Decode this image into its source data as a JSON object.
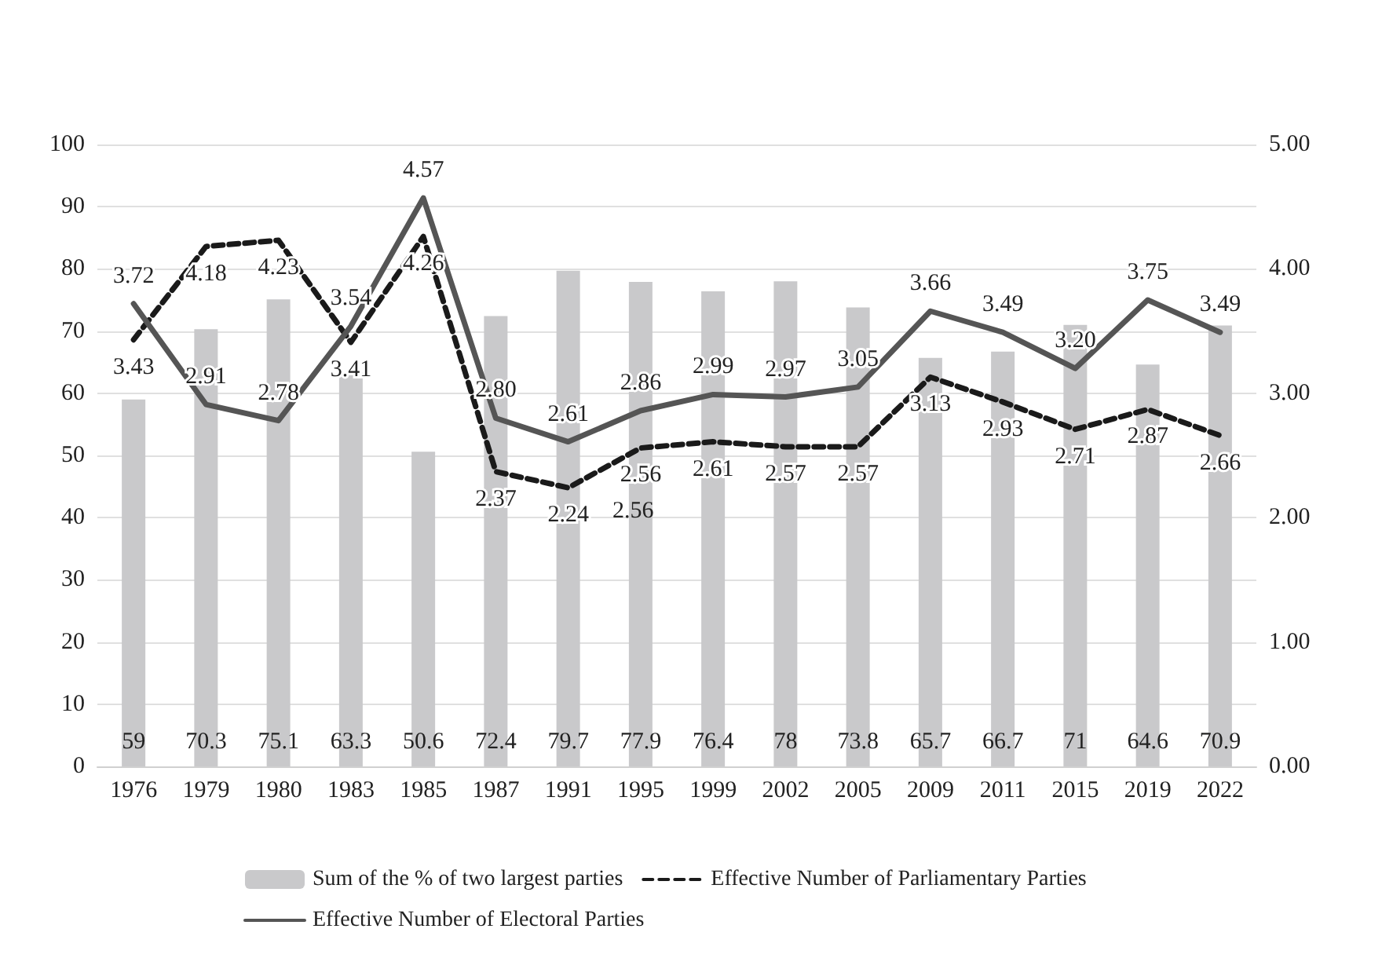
{
  "chart_data": {
    "type": "bar",
    "categories": [
      "1976",
      "1979",
      "1980",
      "1983",
      "1985",
      "1987",
      "1991",
      "1995",
      "1999",
      "2002",
      "2005",
      "2009",
      "2011",
      "2015",
      "2019",
      "2022"
    ],
    "series": [
      {
        "name": "Sum of the % of two largest parties",
        "color": "#c9c9cb",
        "values": [
          59,
          70.3,
          75.1,
          63.3,
          50.6,
          72.4,
          79.7,
          77.9,
          76.4,
          78,
          73.8,
          65.7,
          66.7,
          71,
          64.6,
          70.9
        ]
      },
      {
        "name": "Effective Number of Parliamentary Parties",
        "type": "line",
        "axis": "y2",
        "color": "#1a1a1a",
        "line_style": "dashed",
        "values": [
          3.43,
          4.18,
          4.23,
          3.41,
          4.26,
          2.37,
          2.24,
          2.56,
          2.61,
          2.57,
          2.57,
          3.13,
          2.93,
          2.71,
          2.87,
          2.66
        ],
        "value_labels": [
          "3.43",
          "4.18",
          "4.23",
          "3.41",
          "4.26",
          "2.37",
          "2.24",
          "2.56",
          "2.61",
          "2.57",
          "2.57",
          "3.13",
          "2.93",
          "2.71",
          "2.87",
          "2.66"
        ]
      },
      {
        "name": "Effective Number of Electoral Parties",
        "type": "line",
        "axis": "y2",
        "color": "#555555",
        "line_style": "solid",
        "values": [
          3.72,
          2.91,
          2.78,
          3.54,
          4.57,
          2.8,
          2.61,
          2.86,
          2.99,
          2.97,
          3.05,
          3.66,
          3.49,
          3.2,
          3.75,
          3.49
        ],
        "value_labels": [
          "3.72",
          "2.91",
          "2.78",
          "3.54",
          "4.57",
          "2.80",
          "2.61",
          "2.86",
          "2.99",
          "2.97",
          "3.05",
          "3.66",
          "3.49",
          "3.20",
          "3.75",
          "3.49"
        ]
      }
    ],
    "ylim": [
      0,
      100
    ],
    "yticks": [
      0,
      10,
      20,
      30,
      40,
      50,
      60,
      70,
      80,
      90,
      100
    ],
    "y2lim": [
      0,
      5
    ],
    "y2ticks": [
      {
        "value": 0,
        "label": "0.00"
      },
      {
        "value": 1,
        "label": "1.00"
      },
      {
        "value": 2,
        "label": "2.00"
      },
      {
        "value": 3,
        "label": "3.00"
      },
      {
        "value": 4,
        "label": "4.00"
      },
      {
        "value": 5,
        "label": "5.00"
      }
    ],
    "annotations": [
      "2.56"
    ],
    "data_labels": true,
    "grid": "y",
    "legend": "bottom",
    "marker": "none"
  }
}
